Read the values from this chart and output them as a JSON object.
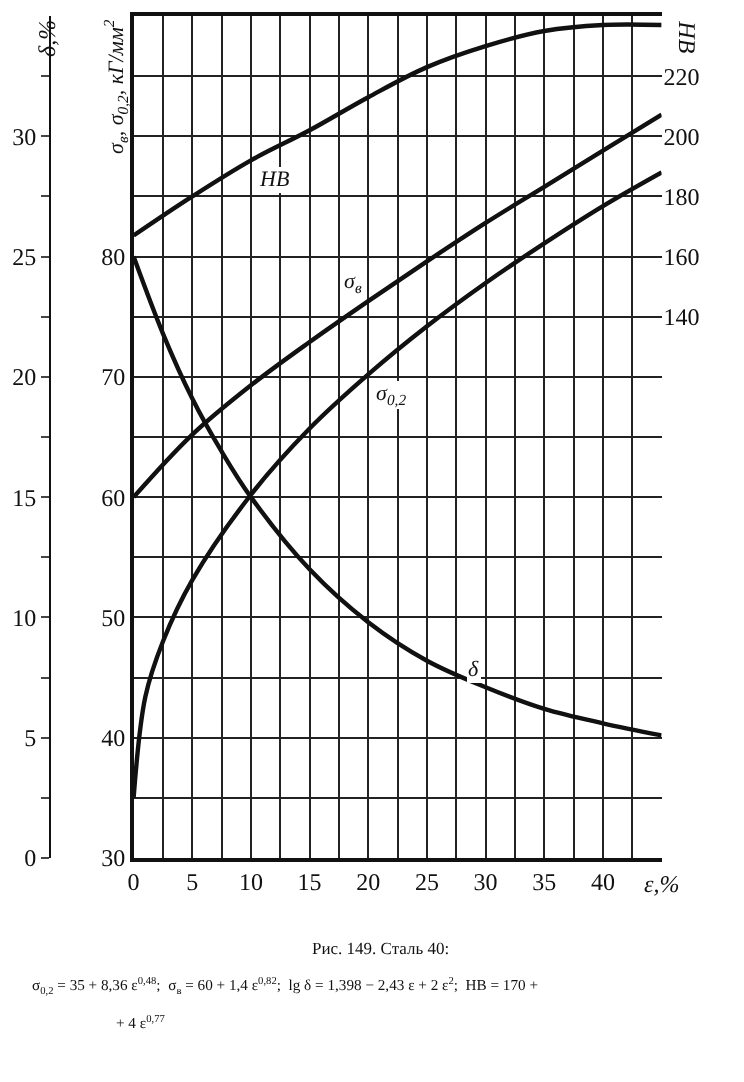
{
  "chart_data": {
    "type": "line",
    "xlabel": "ε,%",
    "ylabel": "δ,%",
    "y2label": "σ$_{в}$, σ$_{0,2}$, кГ/мм$^{2}$",
    "y3label": "HB",
    "series": [
      {
        "name": "HB",
        "color": "#111111",
        "axis": "y3",
        "x": [
          0,
          5,
          10,
          15,
          20,
          25,
          30,
          35,
          40,
          45
        ],
        "values": [
          167,
          180,
          192,
          202,
          213,
          223,
          230,
          235,
          237,
          237
        ]
      },
      {
        "name": "σ$_{в}$",
        "color": "#111111",
        "axis": "y2",
        "x": [
          0,
          5,
          10,
          15,
          20,
          25,
          30,
          35,
          40,
          45
        ],
        "values": [
          60,
          65.2,
          69.3,
          72.9,
          76.3,
          79.6,
          82.8,
          85.8,
          88.8,
          91.8
        ]
      },
      {
        "name": "σ$_{0,2}$",
        "color": "#111111",
        "axis": "y2",
        "x": [
          0,
          1,
          2.5,
          5,
          10,
          15,
          20,
          25,
          30,
          35,
          40,
          45
        ],
        "values": [
          35,
          43.4,
          48,
          53.1,
          60.2,
          65.7,
          70.2,
          74.2,
          77.8,
          81.1,
          84.2,
          87
        ]
      },
      {
        "name": "δ",
        "color": "#111111",
        "x": [
          0,
          2.5,
          5,
          7.5,
          10,
          15,
          20,
          25,
          30,
          35,
          40,
          45
        ],
        "values": [
          25,
          21.8,
          19.1,
          16.9,
          15,
          12,
          9.8,
          8.2,
          7.1,
          6.2,
          5.6,
          5.1
        ]
      }
    ],
    "xlim": [
      0,
      45
    ],
    "xticks": [
      0,
      {
        "value": 2.5,
        "label": null
      },
      5,
      {
        "value": 7.5,
        "label": null
      },
      10,
      {
        "value": 12.5,
        "label": null
      },
      15,
      {
        "value": 17.5,
        "label": null
      },
      20,
      {
        "value": 22.5,
        "label": null
      },
      25,
      {
        "value": 27.5,
        "label": null
      },
      30,
      {
        "value": 32.5,
        "label": null
      },
      35,
      {
        "value": 37.5,
        "label": null
      },
      40,
      {
        "value": 42.5,
        "label": null
      }
    ],
    "ylim": [
      0,
      35
    ],
    "yticks": [
      0,
      {
        "value": 2.5,
        "label": null
      },
      5,
      {
        "value": 7.5,
        "label": null
      },
      10,
      {
        "value": 12.5,
        "label": null
      },
      15,
      {
        "value": 17.5,
        "label": null
      },
      20,
      {
        "value": 22.5,
        "label": null
      },
      25,
      {
        "value": 27.5,
        "label": null
      },
      30,
      {
        "value": 32.5,
        "label": null
      }
    ],
    "y2lim": [
      30,
      100
    ],
    "y2ticks": [
      30,
      40,
      50,
      60,
      70,
      80
    ],
    "y3lim": [
      -40,
      240
    ],
    "y3ticks": [
      140,
      160,
      180,
      200,
      220
    ],
    "grid": true,
    "legend": false,
    "marker": "none",
    "line_style": "solid",
    "annotations": [
      "Рис. 149. Сталь 40:",
      "σ$_{0,2}$ = 35 + 8,36 ε$^{0,48}$;  σ$_{в}$ = 60 + 1,4 ε$^{0,82}$;  lg δ = 1,398 − 2,43 ε + 2 ε$^{2}$;  HB = 170 +",
      "+ 4 ε$^{0,77}$"
    ]
  }
}
